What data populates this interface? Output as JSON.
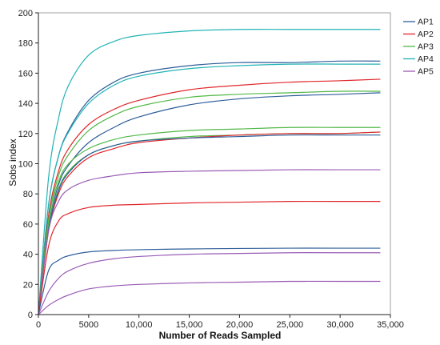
{
  "chart_data": {
    "type": "line",
    "xlabel": "Number of Reads Sampled",
    "ylabel": "Sobs index",
    "xlim": [
      0,
      35000
    ],
    "ylim": [
      0,
      200
    ],
    "x_ticks": [
      0,
      5000,
      10000,
      15000,
      20000,
      25000,
      30000,
      35000
    ],
    "x_tick_labels": [
      "0",
      "5000",
      "10,000",
      "15,000",
      "20,000",
      "25,000",
      "30,000",
      "35,000"
    ],
    "y_ticks": [
      0,
      20,
      40,
      60,
      80,
      100,
      120,
      140,
      160,
      180,
      200
    ],
    "y_tick_labels": [
      "0",
      "20",
      "40",
      "60",
      "80",
      "100",
      "120",
      "140",
      "160",
      "180",
      "200"
    ],
    "grid": false,
    "legend": "top-right",
    "groups": [
      {
        "name": "AP1",
        "color": "#2e5e9a"
      },
      {
        "name": "AP2",
        "color": "#e0262b"
      },
      {
        "name": "AP3",
        "color": "#52b848"
      },
      {
        "name": "AP4",
        "color": "#22b3b5"
      },
      {
        "name": "AP5",
        "color": "#9a5cb5"
      }
    ],
    "curves": [
      {
        "group": "AP4",
        "x": [
          0,
          1000,
          2000,
          3000,
          5000,
          7500,
          10000,
          15000,
          20000,
          25000,
          30000,
          34000
        ],
        "y": [
          0,
          90,
          130,
          152,
          172,
          181,
          185,
          188,
          189,
          189,
          189,
          189
        ]
      },
      {
        "group": "AP1",
        "x": [
          0,
          1000,
          2000,
          3000,
          5000,
          7500,
          10000,
          15000,
          20000,
          25000,
          30000,
          34000
        ],
        "y": [
          0,
          72,
          105,
          122,
          142,
          154,
          160,
          165,
          167,
          167,
          168,
          168
        ]
      },
      {
        "group": "AP4",
        "x": [
          0,
          1000,
          2000,
          3000,
          5000,
          7500,
          10000,
          15000,
          20000,
          25000,
          30000,
          34000
        ],
        "y": [
          0,
          72,
          105,
          121,
          140,
          152,
          158,
          163,
          165,
          166,
          166,
          166
        ]
      },
      {
        "group": "AP2",
        "x": [
          0,
          1000,
          2000,
          3000,
          5000,
          7500,
          10000,
          15000,
          20000,
          25000,
          30000,
          34000
        ],
        "y": [
          0,
          65,
          95,
          110,
          126,
          136,
          142,
          149,
          152,
          154,
          155,
          156
        ]
      },
      {
        "group": "AP3",
        "x": [
          0,
          1000,
          2000,
          3000,
          5000,
          7500,
          10000,
          15000,
          20000,
          25000,
          30000,
          34000
        ],
        "y": [
          0,
          62,
          92,
          106,
          122,
          132,
          138,
          144,
          146,
          147,
          148,
          148
        ]
      },
      {
        "group": "AP1",
        "x": [
          0,
          1000,
          2000,
          3000,
          5000,
          7500,
          10000,
          15000,
          20000,
          25000,
          30000,
          34000
        ],
        "y": [
          0,
          58,
          86,
          99,
          114,
          124,
          131,
          139,
          143,
          145,
          146,
          147
        ]
      },
      {
        "group": "AP3",
        "x": [
          0,
          1000,
          2000,
          3000,
          5000,
          7500,
          10000,
          15000,
          20000,
          25000,
          30000,
          34000
        ],
        "y": [
          0,
          62,
          88,
          100,
          110,
          116,
          119,
          122,
          123,
          124,
          124,
          124
        ]
      },
      {
        "group": "AP3",
        "x": [
          0,
          1000,
          2000,
          3000,
          5000,
          7500,
          10000,
          15000,
          20000,
          25000,
          30000,
          34000
        ],
        "y": [
          0,
          58,
          83,
          95,
          106,
          112,
          115,
          118,
          119,
          120,
          120,
          121
        ]
      },
      {
        "group": "AP2",
        "x": [
          0,
          1000,
          2000,
          3000,
          5000,
          7500,
          10000,
          15000,
          20000,
          25000,
          30000,
          34000
        ],
        "y": [
          0,
          55,
          80,
          92,
          104,
          110,
          114,
          117,
          119,
          120,
          120,
          121
        ]
      },
      {
        "group": "AP1",
        "x": [
          0,
          1000,
          2000,
          3000,
          5000,
          7500,
          10000,
          15000,
          20000,
          25000,
          30000,
          34000
        ],
        "y": [
          0,
          56,
          82,
          94,
          106,
          112,
          115,
          117,
          118,
          119,
          119,
          119
        ]
      },
      {
        "group": "AP5",
        "x": [
          0,
          1000,
          2000,
          3000,
          5000,
          7500,
          10000,
          15000,
          20000,
          25000,
          30000,
          34000
        ],
        "y": [
          0,
          55,
          75,
          83,
          89,
          92,
          94,
          95,
          95.5,
          96,
          96,
          96
        ]
      },
      {
        "group": "AP2",
        "x": [
          0,
          1000,
          2000,
          3000,
          5000,
          7500,
          10000,
          15000,
          20000,
          25000,
          30000,
          34000
        ],
        "y": [
          0,
          45,
          62,
          67,
          71,
          72.5,
          73,
          74,
          74.5,
          75,
          75,
          75
        ]
      },
      {
        "group": "AP1",
        "x": [
          0,
          1000,
          2000,
          3000,
          5000,
          7500,
          10000,
          15000,
          20000,
          25000,
          30000,
          34000
        ],
        "y": [
          0,
          29,
          36,
          39,
          41.5,
          42.5,
          43,
          43.5,
          43.8,
          44,
          44,
          44
        ]
      },
      {
        "group": "AP5",
        "x": [
          0,
          1000,
          2000,
          3000,
          5000,
          7500,
          10000,
          15000,
          20000,
          25000,
          30000,
          34000
        ],
        "y": [
          0,
          15,
          24,
          29,
          34,
          37,
          38.5,
          40,
          40.5,
          41,
          41,
          41
        ]
      },
      {
        "group": "AP5",
        "x": [
          0,
          1000,
          2000,
          3000,
          5000,
          7500,
          10000,
          15000,
          20000,
          25000,
          30000,
          34000
        ],
        "y": [
          0,
          6,
          10,
          13,
          17,
          19,
          20,
          21,
          21.5,
          22,
          22,
          22
        ]
      }
    ]
  }
}
